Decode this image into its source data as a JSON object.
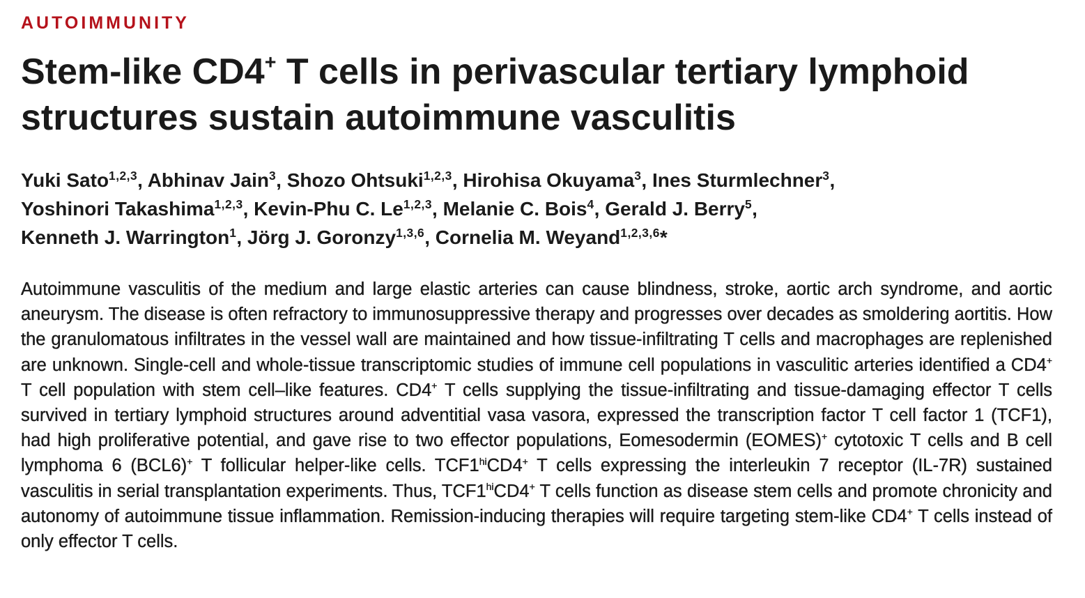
{
  "section_label": "AUTOIMMUNITY",
  "title": {
    "part1": "Stem-like CD4",
    "sup": "+",
    "part2": " T cells in perivascular tertiary lymphoid structures sustain autoimmune vasculitis"
  },
  "authors": [
    {
      "name": "Yuki Sato",
      "affil": "1,2,3",
      "sep": ", "
    },
    {
      "name": "Abhinav Jain",
      "affil": "3",
      "sep": ", "
    },
    {
      "name": "Shozo Ohtsuki",
      "affil": "1,2,3",
      "sep": ", "
    },
    {
      "name": "Hirohisa Okuyama",
      "affil": "3",
      "sep": ", "
    },
    {
      "name": "Ines Sturmlechner",
      "affil": "3",
      "sep": ", "
    },
    {
      "name": "Yoshinori Takashima",
      "affil": "1,2,3",
      "sep": ", "
    },
    {
      "name": "Kevin-Phu C. Le",
      "affil": "1,2,3",
      "sep": ", "
    },
    {
      "name": "Melanie C. Bois",
      "affil": "4",
      "sep": ", "
    },
    {
      "name": "Gerald J. Berry",
      "affil": "5",
      "sep": ", "
    },
    {
      "name": "Kenneth J. Warrington",
      "affil": "1",
      "sep": ", "
    },
    {
      "name": "Jörg J. Goronzy",
      "affil": "1,3,6",
      "sep": ", "
    },
    {
      "name": "Cornelia M. Weyand",
      "affil": "1,2,3,6",
      "sep": "*"
    }
  ],
  "abstract": {
    "s1": "Autoimmune vasculitis of the medium and large elastic arteries can cause blindness, stroke, aortic arch syn­drome, and aortic aneurysm. The disease is often refractory to immunosuppressive therapy and progresses over decades as smoldering aortitis. How the granulomatous infiltrates in the vessel wall are maintained and how tissue-infiltrating T cells and macrophages are replenished are unknown. Single-cell and whole-tissue tran­scriptomic studies of immune cell populations in vasculitic arteries identified a CD4",
    "s2": " T cell population with stem cell–like features. CD4",
    "s3": " T cells supplying the tissue-infiltrating and tissue-damaging effector T cells survived in tertiary lymphoid structures around adventitial vasa vasora, expressed the transcription factor T cell factor 1 (TCF1), had high proliferative potential, and gave rise to two effector populations, Eomesodermin (EOMES)",
    "s4": " cytotoxic T cells and B cell lymphoma 6 (BCL6)",
    "s5": " T follicular helper-like cells. TCF1",
    "s6": "CD4",
    "s7": " T cells expressing the interleukin 7 receptor (IL-7R) sustained vasculitis in serial transplantation experiments. Thus, TCF1",
    "s8": "CD4",
    "s9": " T cells function as disease stem cells and promote chronicity and autonomy of autoimmune tissue inflammation. Remission-inducing therapies will require targeting stem-like CD4",
    "s10": " T cells instead of only effector T cells.",
    "plus": "+",
    "hi": "hi"
  }
}
